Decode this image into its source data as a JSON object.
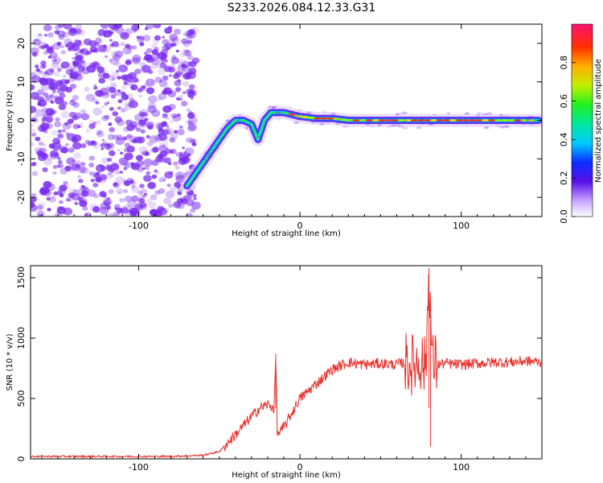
{
  "title": "S233.2026.084.12.33.G31",
  "chart_data": [
    {
      "type": "heatmap",
      "xlabel": "Height of straight line (km)",
      "ylabel": "Frequency (Hz)",
      "xlim": [
        -167,
        150
      ],
      "ylim": [
        -25,
        25
      ],
      "xticks": [
        -100,
        0,
        100
      ],
      "yticks": [
        -20,
        -10,
        0,
        10,
        20
      ],
      "colorbar": {
        "label": "Normalized spectral amplitude",
        "range": [
          0,
          1
        ],
        "ticks": [
          0.0,
          0.2,
          0.4,
          0.6,
          0.8
        ]
      },
      "ridge": {
        "x": [
          -70,
          -65,
          -60,
          -55,
          -50,
          -45,
          -40,
          -35,
          -30,
          -26,
          -22,
          -18,
          -14,
          -10,
          -5,
          0,
          10,
          20,
          30,
          40,
          50,
          60,
          70,
          80,
          90,
          100,
          110,
          120,
          130,
          140,
          148
        ],
        "y": [
          -17,
          -14,
          -11,
          -8,
          -5,
          -2,
          0,
          0,
          -1,
          -5,
          0,
          2,
          2,
          2,
          1.5,
          1,
          0.5,
          0.5,
          0,
          0,
          0,
          0,
          0,
          0,
          0,
          0,
          0,
          0,
          0,
          0,
          0
        ]
      },
      "noise_region_x": [
        -167,
        -68
      ],
      "noise_color": "#7a2cf0"
    },
    {
      "type": "line",
      "xlabel": "Height of straight line (km)",
      "ylabel": "SNR (10 * v/v)",
      "xlim": [
        -167,
        150
      ],
      "ylim": [
        0,
        1600
      ],
      "xticks": [
        -100,
        0,
        100
      ],
      "yticks": [
        0,
        500,
        1000,
        1500
      ],
      "color": "#e8302a",
      "series": [
        {
          "x": [
            -167,
            -140,
            -110,
            -80,
            -60,
            -50,
            -40,
            -30,
            -25,
            -20,
            -16,
            -15,
            -14,
            -10,
            0,
            10,
            20,
            30,
            40,
            50,
            60,
            65,
            70,
            75,
            78,
            80,
            82,
            85,
            90,
            100,
            110,
            120,
            130,
            140,
            150
          ],
          "y": [
            20,
            20,
            20,
            20,
            30,
            60,
            200,
            350,
            420,
            450,
            420,
            870,
            200,
            260,
            500,
            620,
            740,
            800,
            780,
            790,
            780,
            800,
            780,
            820,
            750,
            1580,
            800,
            780,
            790,
            780,
            790,
            800,
            800,
            810,
            800
          ]
        }
      ]
    }
  ]
}
